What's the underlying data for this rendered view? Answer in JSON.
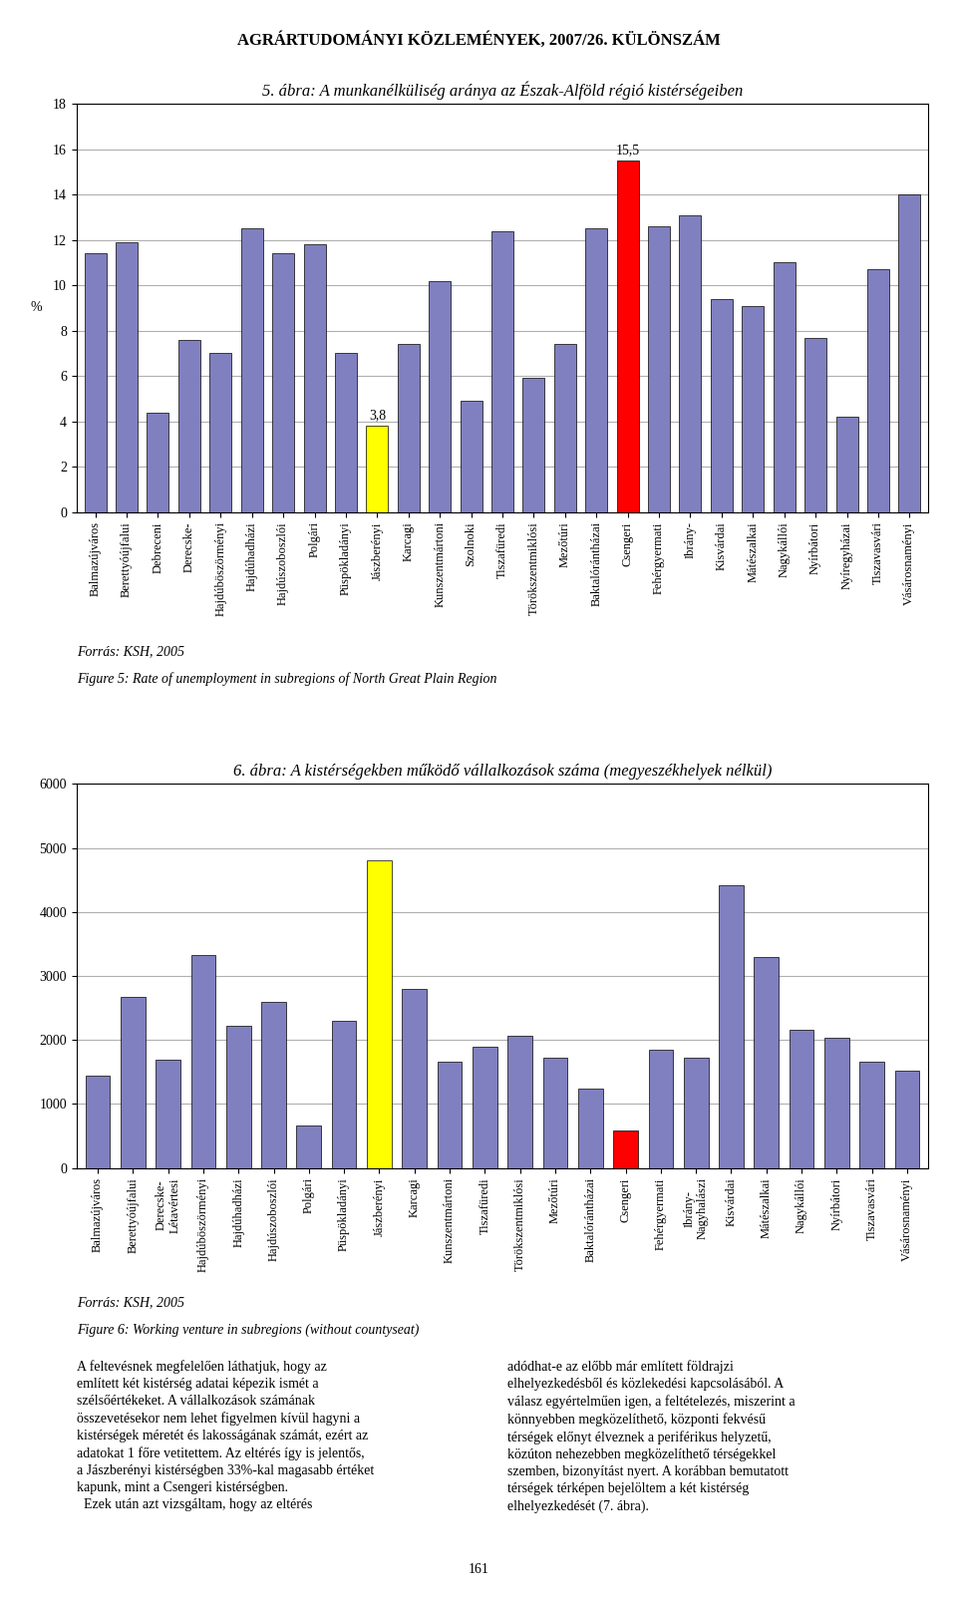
{
  "title": "AGRÁRTUDOMÁNYI KÖZLEMÉNYEK, 2007/26. KÜLÖNSZÁM",
  "chart_data": [
    {
      "type": "bar",
      "title": "5. ábra: A munkanélküliség aránya az Észak-Alföld régió kistérségeiben",
      "ylabel": "%",
      "categories": [
        "Balmazújváros",
        "Berettyóújfalui",
        "Debreceni",
        "Derecske-",
        "Hajdúböszörményi",
        "Hajdúhadházi",
        "Hajdúszoboszlói",
        "Polgári",
        "Püspökladányi",
        "Jászberényi",
        "Karcagi",
        "Kunszentmártoni",
        "Szolnoki",
        "Tiszafüredi",
        "Törökszentmiklósi",
        "Mezőtúri",
        "Baktalórántházai",
        "Csengeri",
        "Fehérgyermati",
        "Ibrány-",
        "Kisvárdai",
        "Mátészalkai",
        "Nagykállói",
        "Nyírbátori",
        "Nyíregyházai",
        "Tiszavasvári",
        "Vásárosnaményi"
      ],
      "values": [
        11.4,
        11.9,
        4.4,
        7.6,
        7.0,
        12.5,
        11.4,
        11.8,
        7.0,
        3.8,
        7.4,
        10.2,
        4.9,
        12.4,
        5.9,
        7.4,
        12.5,
        15.5,
        12.6,
        13.1,
        9.4,
        9.1,
        11.0,
        7.7,
        4.2,
        10.7,
        14.0
      ],
      "colors": [
        "#8080c0",
        "#8080c0",
        "#8080c0",
        "#8080c0",
        "#8080c0",
        "#8080c0",
        "#8080c0",
        "#8080c0",
        "#8080c0",
        "#ffff00",
        "#8080c0",
        "#8080c0",
        "#8080c0",
        "#8080c0",
        "#8080c0",
        "#8080c0",
        "#8080c0",
        "#ff0000",
        "#8080c0",
        "#8080c0",
        "#8080c0",
        "#8080c0",
        "#8080c0",
        "#8080c0",
        "#8080c0",
        "#8080c0",
        "#8080c0"
      ],
      "ylim": [
        0,
        18
      ],
      "yticks": [
        0,
        2,
        4,
        6,
        8,
        10,
        12,
        14,
        16,
        18
      ],
      "grid": true,
      "annotations": [
        {
          "category": "Jászberényi",
          "value": 3.8,
          "text": "3,8"
        },
        {
          "category": "Csengeri",
          "value": 15.5,
          "text": "15,5"
        }
      ],
      "source": "Forrás: KSH, 2005",
      "caption": "Figure 5: Rate of unemployment in subregions of North Great Plain Region"
    },
    {
      "type": "bar",
      "title": "6. ábra: A kistérségekben működő vállalkozások száma (megyeszékhelyek nélkül)",
      "categories": [
        "Balmazújváros",
        "Berettyóújfalui",
        "Derecske-\nLétavértesi",
        "Hajdúböszörményi",
        "Hajdúhadházi",
        "Hajdúszoboszlói",
        "Polgári",
        "Püspökladányi",
        "Jászberényi",
        "Karcagi",
        "Kunszentmártoni",
        "Tiszafüredi",
        "Törökszentmiklósi",
        "Mezőtúri",
        "Baktalórántházai",
        "Csengeri",
        "Fehérgyermati",
        "Ibrány-\nNagyhalászi",
        "Kisvárdai",
        "Mátészalkai",
        "Nagykállói",
        "Nyírbátori",
        "Tiszavasvári",
        "Vásárosnaményi"
      ],
      "values": [
        1450,
        2680,
        1700,
        3330,
        2220,
        2590,
        660,
        2300,
        4800,
        2800,
        1660,
        1900,
        2060,
        1730,
        1240,
        580,
        1850,
        1720,
        4420,
        3300,
        2160,
        2030,
        1660,
        1520
      ],
      "colors": [
        "#8080c0",
        "#8080c0",
        "#8080c0",
        "#8080c0",
        "#8080c0",
        "#8080c0",
        "#8080c0",
        "#8080c0",
        "#ffff00",
        "#8080c0",
        "#8080c0",
        "#8080c0",
        "#8080c0",
        "#8080c0",
        "#8080c0",
        "#ff0000",
        "#8080c0",
        "#8080c0",
        "#8080c0",
        "#8080c0",
        "#8080c0",
        "#8080c0",
        "#8080c0",
        "#8080c0"
      ],
      "ylim": [
        0,
        6000
      ],
      "yticks": [
        0,
        1000,
        2000,
        3000,
        4000,
        5000,
        6000
      ],
      "grid": true,
      "source": "Forrás: KSH, 2005",
      "caption": "Figure 6: Working venture in subregions (without countyseat)"
    }
  ],
  "body_text": [
    "A feltevésnek megfelelően láthatjuk, hogy az\nemlített két kistérség adatai képezik ismét a\nszélsőértékeket. A vállalkozások számának\nösszevetésekor nem lehet figyelmen kívül hagyni a\nkistérségek méretét és lakosságának számát, ezért az\nadatokat 1 főre vetitettem. Az eltérés így is jelentős,\na Jászberényi kistérségben 33%-kal magasabb értéket\nkapunk, mint a Csengeri kistérségben.\n  Ezek után azt vizsgáltam, hogy az eltérés",
    "adódhat-e az előbb már említett földrajzi\nelhelyezkedésből és közlekedési kapcsolásából. A\nválasz egyértelműen igen, a feltételezés, miszerint a\nkönnyebben megközelíthető, központi fekvésű\ntérségek előnyt élveznek a periférikus helyzetű,\nközúton nehezebben megközelíthető térségekkel\nszemben, bizonyítást nyert. A korábban bemutatott\ntérségek térképen bejelöltem a két kistérség\nelhelyezkedését (7. ábra)."
  ],
  "page_number": "161"
}
